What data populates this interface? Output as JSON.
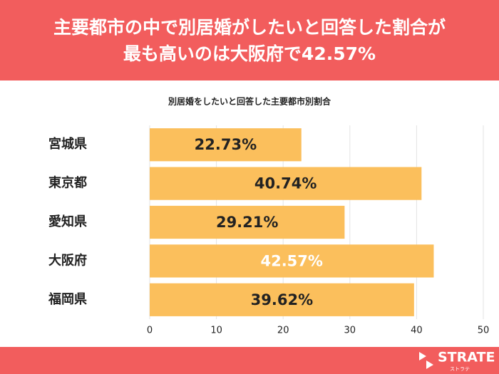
{
  "header": {
    "title_lines": [
      "主要都市の中で別居婚がしたいと回答した割合が",
      "最も高いのは大阪府で42.57%"
    ]
  },
  "chart_data": {
    "type": "bar",
    "orientation": "horizontal",
    "title": "別居婚をしたいと回答した主要都市別割合",
    "categories": [
      "宮城県",
      "東京都",
      "愛知県",
      "大阪府",
      "福岡県"
    ],
    "values": [
      22.73,
      40.74,
      29.21,
      42.57,
      39.62
    ],
    "value_labels": [
      "22.73%",
      "40.74%",
      "29.21%",
      "42.57%",
      "39.62%"
    ],
    "value_label_colors": [
      "#222222",
      "#222222",
      "#222222",
      "#ffffff",
      "#222222"
    ],
    "color": "#fbbf5c",
    "xlim": [
      0,
      50
    ],
    "xticks": [
      0,
      10,
      20,
      30,
      40,
      50
    ],
    "grid": true
  },
  "footer": {
    "brand": "STRATE",
    "brand_sub": "ストラテ"
  }
}
